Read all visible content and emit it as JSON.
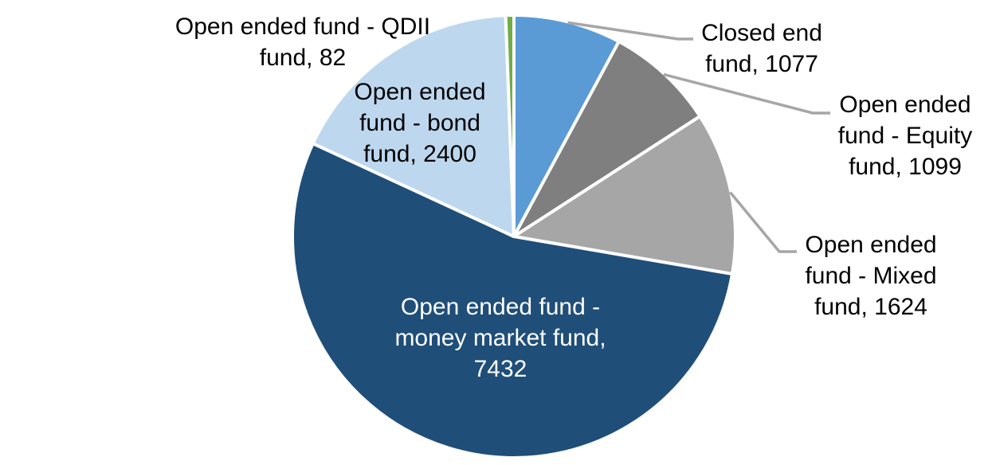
{
  "chart_data": {
    "type": "pie",
    "title": "",
    "total": 13714,
    "start_angle_deg": 0,
    "direction": "clockwise",
    "legend": "none",
    "background": "#FFFFFF",
    "leader_line_color": "#A6A6A6",
    "outside_label_color": "#000000",
    "inside_label_color": "#FFFFFF",
    "slice_border_color": "#FFFFFF",
    "slices": [
      {
        "id": "closed-end-fund",
        "label": "Closed end fund",
        "value": 1077,
        "display": "Closed end fund, 1077",
        "color": "#5B9BD5",
        "label_position": "outside"
      },
      {
        "id": "open-ended-equity-fund",
        "label": "Open ended fund - Equity fund",
        "value": 1099,
        "display": "Open ended fund - Equity fund, 1099",
        "color": "#7F7F7F",
        "label_position": "outside"
      },
      {
        "id": "open-ended-mixed-fund",
        "label": "Open ended fund - Mixed fund",
        "value": 1624,
        "display": "Open ended fund - Mixed fund, 1624",
        "color": "#A6A6A6",
        "label_position": "outside"
      },
      {
        "id": "open-ended-money-market-fund",
        "label": "Open ended fund - money market fund",
        "value": 7432,
        "display": "Open ended fund - money market fund, 7432",
        "color": "#1F4E79",
        "label_position": "inside"
      },
      {
        "id": "open-ended-bond-fund",
        "label": "Open ended fund - bond fund",
        "value": 2400,
        "display": "Open ended fund - bond fund, 2400",
        "color": "#BDD7EE",
        "label_position": "inside"
      },
      {
        "id": "open-ended-qdii-fund",
        "label": "Open ended fund - QDII fund",
        "value": 82,
        "display": "Open ended fund - QDII fund, 82",
        "color": "#70AD47",
        "label_position": "outside"
      }
    ]
  }
}
